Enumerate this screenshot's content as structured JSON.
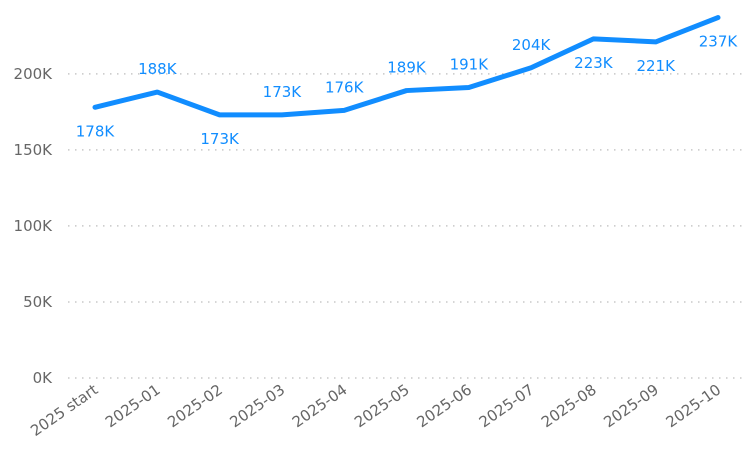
{
  "chart_data": {
    "type": "line",
    "categories": [
      "2025 start",
      "2025-01",
      "2025-02",
      "2025-03",
      "2025-04",
      "2025-05",
      "2025-06",
      "2025-07",
      "2025-08",
      "2025-09",
      "2025-10"
    ],
    "series": [
      {
        "color": "#118DFF",
        "values": [
          178000,
          188000,
          173000,
          173000,
          176000,
          189000,
          191000,
          204000,
          223000,
          221000,
          237000
        ],
        "value_labels": [
          "178K",
          "188K",
          "173K",
          "173K",
          "176K",
          "189K",
          "191K",
          "204K",
          "223K",
          "221K",
          "237K"
        ]
      }
    ],
    "ylim": [
      0,
      240000
    ],
    "yticks": [
      {
        "value": 0,
        "label": "0K"
      },
      {
        "value": 50000,
        "label": "50K"
      },
      {
        "value": 100000,
        "label": "100K"
      },
      {
        "value": 150000,
        "label": "150K"
      },
      {
        "value": 200000,
        "label": "200K"
      }
    ],
    "grid": true
  }
}
